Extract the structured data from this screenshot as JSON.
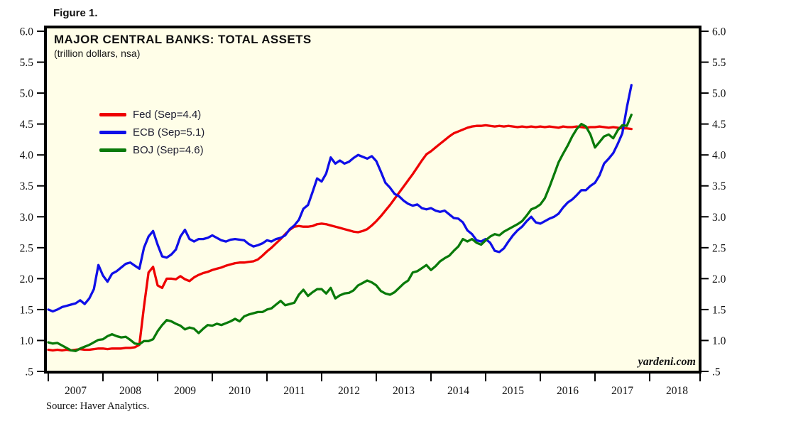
{
  "figure_label": "Figure 1.",
  "chart": {
    "title": "MAJOR CENTRAL BANKS: TOTAL ASSETS",
    "subtitle": "(trillion dollars, nsa)"
  },
  "legend": {
    "items": [
      {
        "id": "fed",
        "label": "Fed (Sep=4.4)",
        "color": "#ee0000"
      },
      {
        "id": "ecb",
        "label": "ECB (Sep=5.1)",
        "color": "#0f0fe8"
      },
      {
        "id": "boj",
        "label": "BOJ (Sep=4.6)",
        "color": "#097a09"
      }
    ]
  },
  "watermark": "yardeni.com",
  "source_note": "Source: Haver Analytics.",
  "colors": {
    "plot_background": "#fffee8",
    "plot_border": "#000000",
    "tick_text": "#121212"
  },
  "axes": {
    "y_tick_labels": [
      "6.0",
      "5.5",
      "5.0",
      "4.5",
      "4.0",
      "3.5",
      "3.0",
      "2.5",
      "2.0",
      "1.5",
      "1.0",
      ".5"
    ],
    "y_tick_values": [
      6.0,
      5.5,
      5.0,
      4.5,
      4.0,
      3.5,
      3.0,
      2.5,
      2.0,
      1.5,
      1.0,
      0.5
    ],
    "x_year_labels": [
      "2007",
      "2008",
      "2009",
      "2010",
      "2011",
      "2012",
      "2013",
      "2014",
      "2015",
      "2016",
      "2017",
      "2018"
    ]
  },
  "chart_data": {
    "type": "line",
    "title": "MAJOR CENTRAL BANKS: TOTAL ASSETS",
    "units": "trillion dollars, nsa",
    "frequency": "monthly",
    "x_start": "2007-01",
    "x_end": "2017-09",
    "ylim": [
      0.5,
      6.0
    ],
    "y_tick_step": 0.5,
    "grid": false,
    "legend_position": "top-left",
    "series": [
      {
        "name": "Fed (Sep=4.4)",
        "color": "#ee0000",
        "values": [
          0.85,
          0.84,
          0.85,
          0.84,
          0.85,
          0.84,
          0.85,
          0.86,
          0.85,
          0.85,
          0.86,
          0.87,
          0.87,
          0.86,
          0.87,
          0.87,
          0.87,
          0.88,
          0.88,
          0.89,
          0.93,
          1.55,
          2.1,
          2.19,
          1.89,
          1.85,
          2.0,
          2.0,
          1.99,
          2.04,
          1.99,
          1.96,
          2.02,
          2.06,
          2.09,
          2.11,
          2.14,
          2.16,
          2.18,
          2.21,
          2.23,
          2.25,
          2.26,
          2.26,
          2.27,
          2.28,
          2.31,
          2.37,
          2.44,
          2.5,
          2.57,
          2.64,
          2.72,
          2.79,
          2.84,
          2.85,
          2.84,
          2.84,
          2.85,
          2.88,
          2.89,
          2.88,
          2.86,
          2.84,
          2.82,
          2.8,
          2.78,
          2.76,
          2.75,
          2.77,
          2.8,
          2.86,
          2.93,
          3.01,
          3.1,
          3.19,
          3.29,
          3.39,
          3.49,
          3.59,
          3.69,
          3.8,
          3.91,
          4.01,
          4.06,
          4.12,
          4.18,
          4.24,
          4.3,
          4.35,
          4.38,
          4.41,
          4.44,
          4.46,
          4.47,
          4.47,
          4.48,
          4.47,
          4.46,
          4.47,
          4.46,
          4.47,
          4.46,
          4.45,
          4.46,
          4.45,
          4.46,
          4.45,
          4.46,
          4.45,
          4.46,
          4.45,
          4.44,
          4.46,
          4.45,
          4.45,
          4.46,
          4.45,
          4.44,
          4.45,
          4.45,
          4.46,
          4.45,
          4.44,
          4.45,
          4.44,
          4.43,
          4.43,
          4.42
        ]
      },
      {
        "name": "ECB (Sep=5.1)",
        "color": "#0f0fe8",
        "values": [
          1.5,
          1.47,
          1.5,
          1.54,
          1.56,
          1.58,
          1.6,
          1.65,
          1.59,
          1.68,
          1.83,
          2.22,
          2.05,
          1.95,
          2.08,
          2.12,
          2.18,
          2.24,
          2.26,
          2.21,
          2.16,
          2.5,
          2.68,
          2.77,
          2.55,
          2.36,
          2.34,
          2.39,
          2.47,
          2.68,
          2.79,
          2.64,
          2.6,
          2.64,
          2.64,
          2.66,
          2.7,
          2.66,
          2.62,
          2.6,
          2.63,
          2.64,
          2.63,
          2.62,
          2.56,
          2.52,
          2.54,
          2.57,
          2.62,
          2.6,
          2.64,
          2.66,
          2.7,
          2.8,
          2.86,
          2.95,
          3.13,
          3.19,
          3.4,
          3.62,
          3.57,
          3.7,
          3.96,
          3.86,
          3.91,
          3.86,
          3.89,
          3.95,
          4.0,
          3.97,
          3.94,
          3.98,
          3.9,
          3.73,
          3.55,
          3.47,
          3.37,
          3.33,
          3.26,
          3.21,
          3.18,
          3.2,
          3.14,
          3.12,
          3.14,
          3.1,
          3.08,
          3.1,
          3.04,
          2.98,
          2.97,
          2.91,
          2.78,
          2.72,
          2.62,
          2.6,
          2.64,
          2.58,
          2.45,
          2.43,
          2.49,
          2.6,
          2.7,
          2.78,
          2.84,
          2.93,
          3.0,
          2.91,
          2.89,
          2.93,
          2.97,
          3.0,
          3.05,
          3.15,
          3.23,
          3.28,
          3.35,
          3.43,
          3.43,
          3.5,
          3.55,
          3.67,
          3.86,
          3.94,
          4.03,
          4.18,
          4.35,
          4.77,
          5.13
        ]
      },
      {
        "name": "BOJ (Sep=4.6)",
        "color": "#097a09",
        "values": [
          0.97,
          0.95,
          0.96,
          0.92,
          0.88,
          0.84,
          0.83,
          0.87,
          0.9,
          0.93,
          0.97,
          1.01,
          1.02,
          1.07,
          1.1,
          1.07,
          1.05,
          1.06,
          1.01,
          0.95,
          0.94,
          0.99,
          0.99,
          1.02,
          1.15,
          1.25,
          1.33,
          1.31,
          1.27,
          1.24,
          1.18,
          1.21,
          1.19,
          1.12,
          1.19,
          1.25,
          1.24,
          1.27,
          1.25,
          1.28,
          1.31,
          1.35,
          1.31,
          1.39,
          1.42,
          1.44,
          1.46,
          1.46,
          1.5,
          1.52,
          1.58,
          1.64,
          1.57,
          1.59,
          1.61,
          1.74,
          1.82,
          1.72,
          1.78,
          1.83,
          1.83,
          1.76,
          1.85,
          1.68,
          1.73,
          1.76,
          1.77,
          1.81,
          1.89,
          1.93,
          1.97,
          1.94,
          1.89,
          1.8,
          1.76,
          1.74,
          1.78,
          1.85,
          1.92,
          1.97,
          2.1,
          2.12,
          2.17,
          2.22,
          2.14,
          2.2,
          2.28,
          2.33,
          2.37,
          2.45,
          2.52,
          2.64,
          2.6,
          2.64,
          2.58,
          2.55,
          2.62,
          2.68,
          2.72,
          2.7,
          2.76,
          2.8,
          2.84,
          2.88,
          2.93,
          3.02,
          3.12,
          3.15,
          3.2,
          3.3,
          3.48,
          3.68,
          3.88,
          4.02,
          4.15,
          4.3,
          4.42,
          4.5,
          4.46,
          4.33,
          4.12,
          4.21,
          4.3,
          4.33,
          4.27,
          4.4,
          4.48,
          4.47,
          4.65
        ]
      }
    ]
  }
}
